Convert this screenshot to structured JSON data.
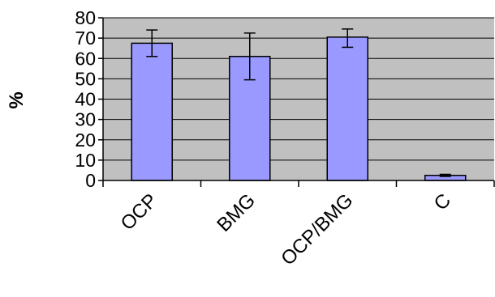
{
  "chart_data": {
    "type": "bar",
    "categories": [
      "OCP",
      "BMG",
      "OCP/BMG",
      "C"
    ],
    "values": [
      67.5,
      61,
      70.5,
      2.5
    ],
    "errors": [
      [
        61,
        74
      ],
      [
        49.5,
        72.5
      ],
      [
        65.5,
        74.5
      ],
      [
        2,
        3
      ]
    ],
    "ylabel": "%",
    "ylim": [
      0,
      80
    ],
    "yticks": [
      0,
      10,
      20,
      30,
      40,
      50,
      60,
      70,
      80
    ],
    "grid": true,
    "colors": {
      "bar_fill": "#9999ff",
      "bar_stroke": "#000000",
      "plot_background": "#c0c0c0",
      "grid": "#000000"
    }
  }
}
